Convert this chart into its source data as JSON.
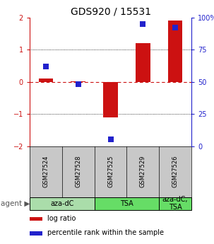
{
  "title": "GDS920 / 15531",
  "samples": [
    "GSM27524",
    "GSM27528",
    "GSM27525",
    "GSM27529",
    "GSM27526"
  ],
  "log_ratio": [
    0.1,
    0.02,
    -1.1,
    1.2,
    1.9
  ],
  "percentile_rank": [
    62,
    48,
    5,
    95,
    92
  ],
  "ylim_left": [
    -2,
    2
  ],
  "ylim_right": [
    0,
    100
  ],
  "yticks_left": [
    -2,
    -1,
    0,
    1,
    2
  ],
  "yticks_right": [
    0,
    25,
    50,
    75,
    100
  ],
  "ytick_labels_right": [
    "0",
    "25",
    "50",
    "75",
    "100%"
  ],
  "bar_color": "#cc1111",
  "dot_color": "#2222cc",
  "zero_line_color": "#cc1111",
  "group_configs": [
    {
      "label": "aza-dC",
      "start": 0,
      "end": 2,
      "color": "#aaddaa"
    },
    {
      "label": "TSA",
      "start": 2,
      "end": 4,
      "color": "#66dd66"
    },
    {
      "label": "aza-dC,\nTSA",
      "start": 4,
      "end": 5,
      "color": "#66dd66"
    }
  ],
  "agent_label": "agent",
  "legend_log_ratio": "log ratio",
  "legend_percentile": "percentile rank within the sample",
  "bar_width": 0.45,
  "dot_size": 28,
  "background_color": "#ffffff",
  "label_bg": "#c8c8c8",
  "title_fontsize": 10,
  "tick_fontsize": 7,
  "sample_fontsize": 6,
  "group_fontsize": 7,
  "legend_fontsize": 7
}
